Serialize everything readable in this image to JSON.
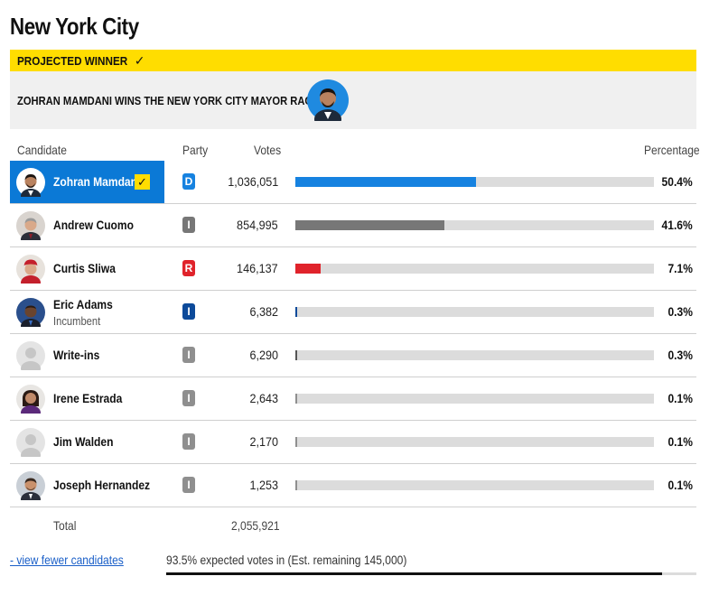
{
  "page": {
    "title": "New York City"
  },
  "banner": {
    "projected_label": "PROJECTED WINNER",
    "check_icon": "check-icon",
    "headline": "ZOHRAN MAMDANI WINS THE NEW YORK CITY MAYOR RACE"
  },
  "table": {
    "headers": {
      "candidate": "Candidate",
      "party": "Party",
      "votes": "Votes",
      "percentage": "Percentage"
    },
    "rows": [
      {
        "name": "Zohran Mamdani",
        "sub": "",
        "party": "D",
        "votes": "1,036,051",
        "pct": "50.4%",
        "share": 0.504,
        "winner": true
      },
      {
        "name": "Andrew Cuomo",
        "sub": "",
        "party": "I",
        "votes": "854,995",
        "pct": "41.6%",
        "share": 0.416,
        "winner": false
      },
      {
        "name": "Curtis Sliwa",
        "sub": "",
        "party": "R",
        "votes": "146,137",
        "pct": "7.1%",
        "share": 0.071,
        "winner": false
      },
      {
        "name": "Eric Adams",
        "sub": "Incumbent",
        "party": "I",
        "votes": "6,382",
        "pct": "0.3%",
        "share": 0.003,
        "winner": false
      },
      {
        "name": "Write-ins",
        "sub": "",
        "party": "I",
        "votes": "6,290",
        "pct": "0.3%",
        "share": 0.003,
        "winner": false
      },
      {
        "name": "Irene Estrada",
        "sub": "",
        "party": "I",
        "votes": "2,643",
        "pct": "0.1%",
        "share": 0.001,
        "winner": false
      },
      {
        "name": "Jim Walden",
        "sub": "",
        "party": "I",
        "votes": "2,170",
        "pct": "0.1%",
        "share": 0.001,
        "winner": false
      },
      {
        "name": "Joseph Hernandez",
        "sub": "",
        "party": "I",
        "votes": "1,253",
        "pct": "0.1%",
        "share": 0.001,
        "winner": false
      }
    ],
    "total_label": "Total",
    "total_votes": "2,055,921"
  },
  "footer": {
    "fewer_link": "- view fewer candidates",
    "expected_text": "93.5% expected votes in (Est. remaining 145,000)",
    "expected_share": 0.935
  },
  "colors": {
    "banner_yellow": "#ffdd00",
    "winner_blue": "#0b79d6",
    "dem_blue": "#1682e0",
    "ind_gray": "#777777",
    "ind_badge_light": "#8f8f8f",
    "ind_badge_eric": "#0c4a9a",
    "rep_red": "#e0232b",
    "track_gray": "#dcdcdc"
  }
}
